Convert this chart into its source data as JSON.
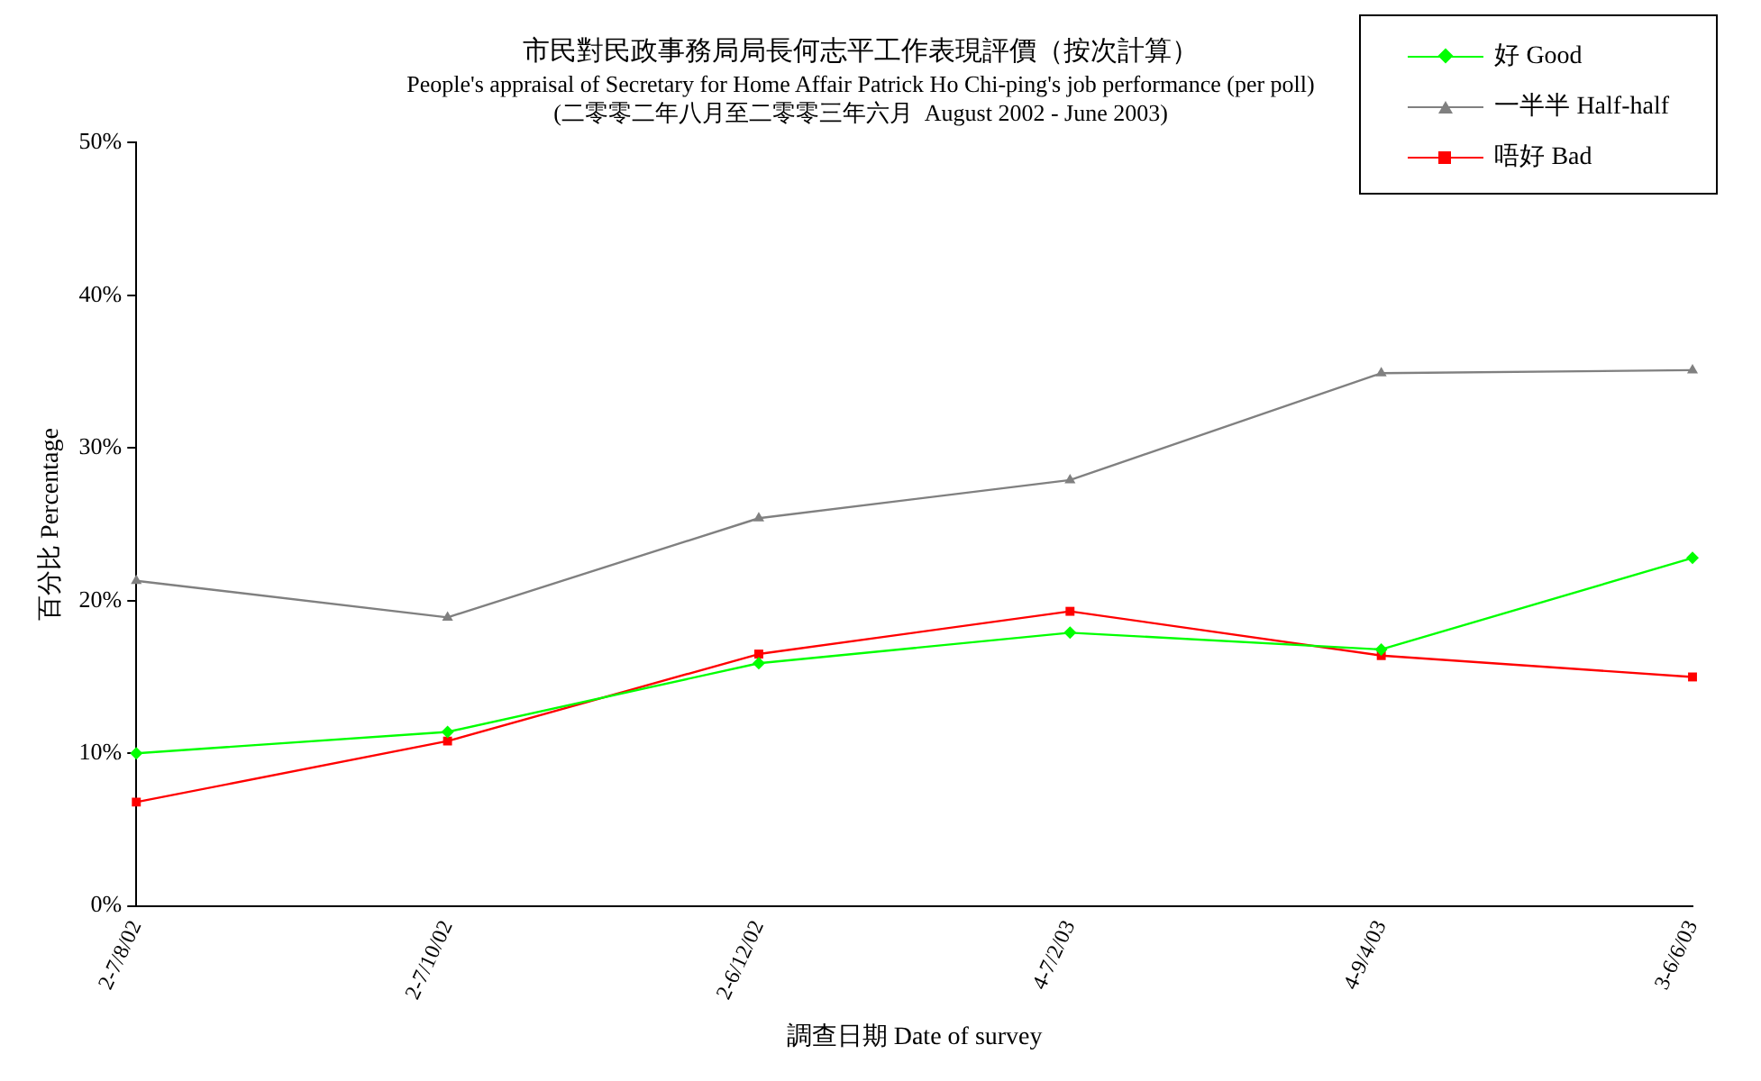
{
  "chart_data": {
    "type": "line",
    "title": "市民對民政事務局局長何志平工作表現評價（按次計算）",
    "subtitle": "People's appraisal of Secretary for Home Affair Patrick Ho Chi-ping's job performance (per poll)\n(二零零二年八月至二零零三年六月  August 2002 - June 2003)",
    "xlabel": "調查日期 Date of survey",
    "ylabel": "百分比 Percentage",
    "categories": [
      "2-7/8/02",
      "2-7/10/02",
      "2-6/12/02",
      "4-7/2/03",
      "4-9/4/03",
      "3-6/6/03"
    ],
    "series": [
      {
        "name": "好 Good",
        "color": "#00ff00",
        "marker": "diamond",
        "values": [
          10.0,
          11.4,
          15.9,
          17.9,
          16.8,
          22.8
        ]
      },
      {
        "name": "一半半 Half-half",
        "color": "#808080",
        "marker": "triangle",
        "values": [
          21.3,
          18.9,
          25.4,
          27.9,
          34.9,
          35.1
        ]
      },
      {
        "name": "唔好 Bad",
        "color": "#ff0000",
        "marker": "square",
        "values": [
          6.8,
          10.8,
          16.5,
          19.3,
          16.4,
          15.0
        ]
      }
    ],
    "ylim": [
      0,
      50
    ],
    "yticks": [
      {
        "value": 0,
        "label": "0%"
      },
      {
        "value": 10,
        "label": "10%"
      },
      {
        "value": 20,
        "label": "20%"
      },
      {
        "value": 30,
        "label": "30%"
      },
      {
        "value": 40,
        "label": "40%"
      },
      {
        "value": 50,
        "label": "50%"
      }
    ],
    "grid": false,
    "legend": "top right",
    "line_style": "solid"
  }
}
